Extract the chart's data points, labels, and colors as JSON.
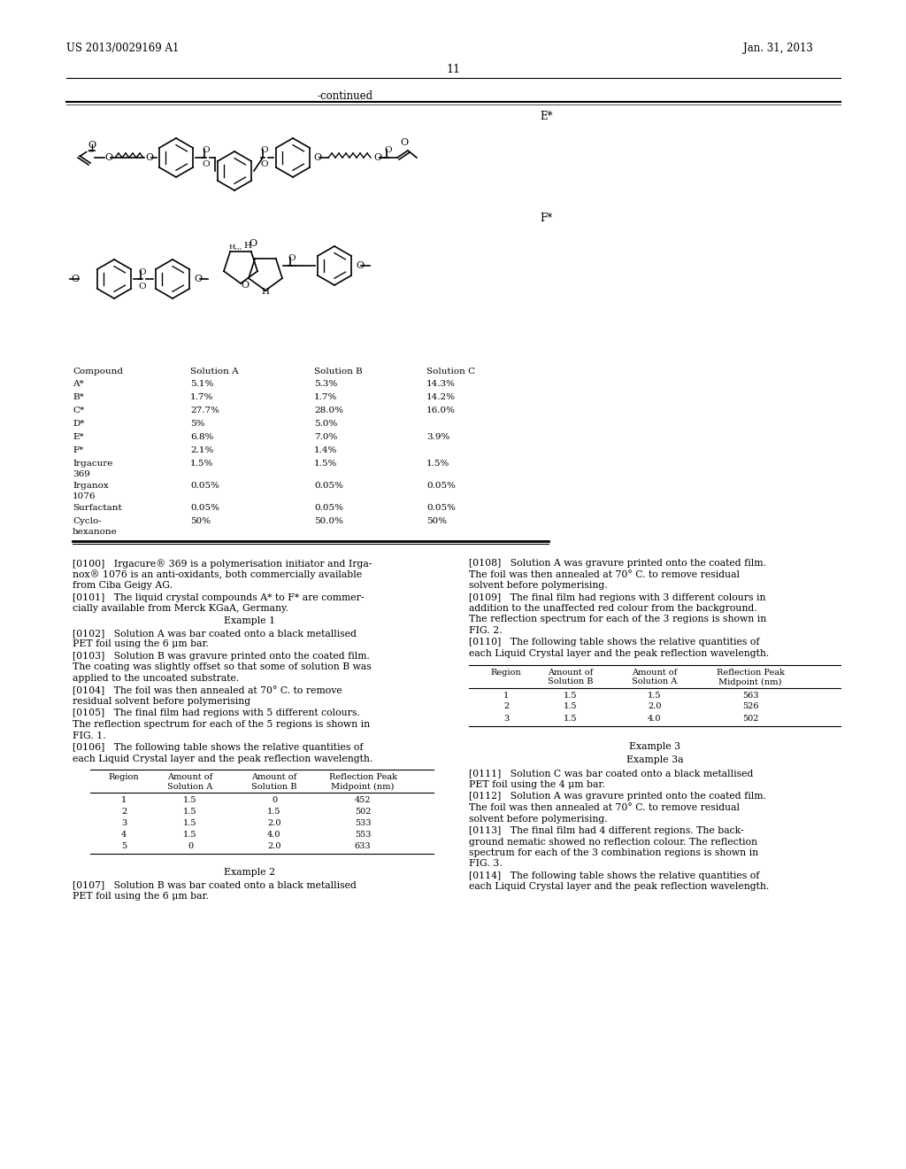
{
  "page_header_left": "US 2013/0029169 A1",
  "page_header_right": "Jan. 31, 2013",
  "page_number": "11",
  "continued_label": "-continued",
  "label_E": "E*",
  "label_F": "F*",
  "table1_header": [
    "Compound",
    "Solution A",
    "Solution B",
    "Solution C"
  ],
  "table1_rows": [
    [
      "A*",
      "5.1%",
      "5.3%",
      "14.3%"
    ],
    [
      "B*",
      "1.7%",
      "1.7%",
      "14.2%"
    ],
    [
      "C*",
      "27.7%",
      "28.0%",
      "16.0%"
    ],
    [
      "D*",
      "5%",
      "5.0%",
      ""
    ],
    [
      "E*",
      "6.8%",
      "7.0%",
      "3.9%"
    ],
    [
      "F*",
      "2.1%",
      "1.4%",
      ""
    ],
    [
      "Irgacure\n369",
      "1.5%",
      "1.5%",
      "1.5%"
    ],
    [
      "Irganox\n1076",
      "0.05%",
      "0.05%",
      "0.05%"
    ],
    [
      "Surfactant",
      "0.05%",
      "0.05%",
      "0.05%"
    ],
    [
      "Cyclo-\nhexanone",
      "50%",
      "50.0%",
      "50%"
    ]
  ],
  "para_0100": "[0100]   Irgacure® 369 is a polymerisation initiator and Irga-\nnox® 1076 is an anti-oxidants, both commercially available\nfrom Ciba Geigy AG.",
  "para_0101": "[0101]   The liquid crystal compounds A* to F* are commer-\ncially available from Merck KGaA, Germany.",
  "example1_title": "Example 1",
  "para_0102": "[0102]   Solution A was bar coated onto a black metallised\nPET foil using the 6 μm bar.",
  "para_0103": "[0103]   Solution B was gravure printed onto the coated film.\nThe coating was slightly offset so that some of solution B was\napplied to the uncoated substrate.",
  "para_0104": "[0104]   The foil was then annealed at 70° C. to remove\nresidual solvent before polymerising",
  "para_0105": "[0105]   The final film had regions with 5 different colours.\nThe reflection spectrum for each of the 5 regions is shown in\nFIG. 1.",
  "para_0106": "[0106]   The following table shows the relative quantities of\neach Liquid Crystal layer and the peak reflection wavelength.",
  "table2_header": [
    "Region",
    "Amount of\nSolution A",
    "Amount of\nSolution B",
    "Reflection Peak\nMidpoint (nm)"
  ],
  "table2_rows": [
    [
      "1",
      "1.5",
      "0",
      "452"
    ],
    [
      "2",
      "1.5",
      "1.5",
      "502"
    ],
    [
      "3",
      "1.5",
      "2.0",
      "533"
    ],
    [
      "4",
      "1.5",
      "4.0",
      "553"
    ],
    [
      "5",
      "0",
      "2.0",
      "633"
    ]
  ],
  "example2_title": "Example 2",
  "para_0107": "[0107]   Solution B was bar coated onto a black metallised\nPET foil using the 6 μm bar.",
  "para_0108": "[0108]   Solution A was gravure printed onto the coated film.\nThe foil was then annealed at 70° C. to remove residual\nsolvent before polymerising.",
  "para_0109": "[0109]   The final film had regions with 3 different colours in\naddition to the unaffected red colour from the background.\nThe reflection spectrum for each of the 3 regions is shown in\nFIG. 2.",
  "para_0110": "[0110]   The following table shows the relative quantities of\neach Liquid Crystal layer and the peak reflection wavelength.",
  "table3_header": [
    "Region",
    "Amount of\nSolution B",
    "Amount of\nSolution A",
    "Reflection Peak\nMidpoint (nm)"
  ],
  "table3_rows": [
    [
      "1",
      "1.5",
      "1.5",
      "563"
    ],
    [
      "2",
      "1.5",
      "2.0",
      "526"
    ],
    [
      "3",
      "1.5",
      "4.0",
      "502"
    ]
  ],
  "example3_title": "Example 3",
  "example3a_title": "Example 3a",
  "para_0111": "[0111]   Solution C was bar coated onto a black metallised\nPET foil using the 4 μm bar.",
  "para_0112": "[0112]   Solution A was gravure printed onto the coated film.\nThe foil was then annealed at 70° C. to remove residual\nsolvent before polymerising.",
  "para_0113": "[0113]   The final film had 4 different regions. The back-\nground nematic showed no reflection colour. The reflection\nspectrum for each of the 3 combination regions is shown in\nFIG. 3.",
  "para_0114": "[0114]   The following table shows the relative quantities of\neach Liquid Crystal layer and the peak reflection wavelength.",
  "bg_color": "#ffffff",
  "text_color": "#000000"
}
